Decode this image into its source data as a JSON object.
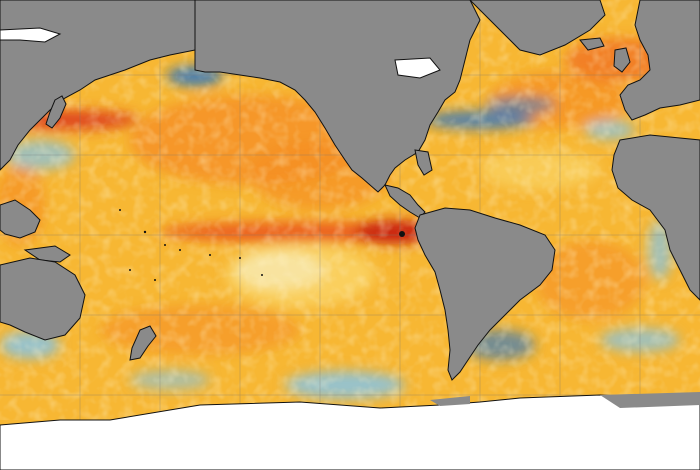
{
  "map": {
    "type": "sea-surface-temperature-anomaly",
    "projection": "equirectangular",
    "gridlines": true,
    "land_color": "#8a8a8a",
    "ice_color": "#ffffff",
    "coastline_color": "#111111",
    "ocean_base_color": "#f7b733",
    "grid_color": "#777777",
    "palette": {
      "strong_warm": "#c41a12",
      "warm": "#ef5a1c",
      "moderate_warm": "#f58f24",
      "mild_warm": "#f7b733",
      "slight_warm": "#fbe07a",
      "neutral": "#f2f0ea",
      "cool": "#7fc4f0",
      "strong_cool": "#1c6fd1"
    },
    "anomaly_features": [
      {
        "name": "equatorial-pacific-warm-band",
        "level": "strong_warm"
      },
      {
        "name": "south-american-coast-warm",
        "level": "strong_warm"
      },
      {
        "name": "kuroshio-warm-streak",
        "level": "warm"
      },
      {
        "name": "north-pacific-warm-blob",
        "level": "moderate_warm"
      },
      {
        "name": "north-atlantic-warm",
        "level": "moderate_warm"
      },
      {
        "name": "gulf-stream-cool",
        "level": "strong_cool"
      },
      {
        "name": "southern-ocean-cool-patches",
        "level": "cool"
      },
      {
        "name": "south-central-pacific-neutral",
        "level": "neutral"
      }
    ]
  }
}
